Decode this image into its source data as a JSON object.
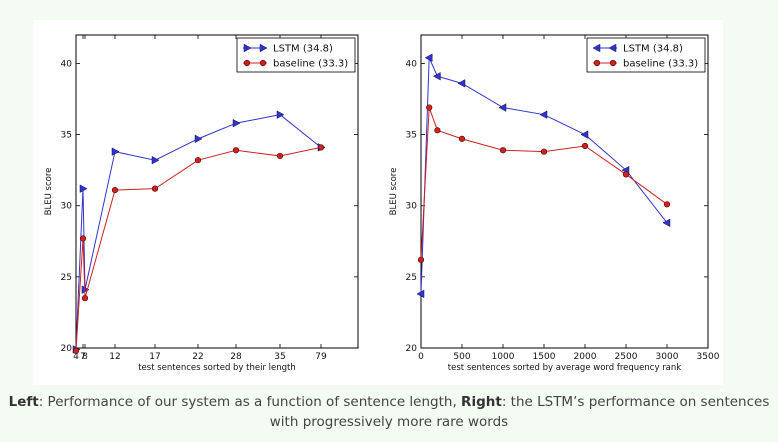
{
  "chart_data": [
    {
      "type": "line",
      "xlabel": "test sentences sorted by their length",
      "ylabel": "BLEU score",
      "ylim": [
        20,
        42
      ],
      "categories": [
        "4",
        "7",
        "8",
        "12",
        "17",
        "22",
        "28",
        "35",
        "79"
      ],
      "xticks": [
        "4",
        "7",
        "8",
        "12",
        "17",
        "22",
        "28",
        "35",
        "79"
      ],
      "yticks": [
        "20",
        "25",
        "30",
        "35",
        "40"
      ],
      "grid": false,
      "legend_position": "top-right",
      "series": [
        {
          "name": "LSTM  (34.8)",
          "color": "#3333cc",
          "marker": "triangle-right",
          "values": [
            19.9,
            31.2,
            24.1,
            33.8,
            33.2,
            34.7,
            35.8,
            36.4,
            34.1
          ]
        },
        {
          "name": "baseline (33.3)",
          "color": "#cc2222",
          "marker": "circle",
          "values": [
            19.8,
            27.7,
            23.5,
            31.1,
            31.2,
            33.2,
            33.9,
            33.5,
            34.1
          ]
        }
      ]
    },
    {
      "type": "line",
      "xlabel": "test sentences sorted by average word frequency rank",
      "ylabel": "BLEU score",
      "ylim": [
        20,
        42
      ],
      "xlim": [
        0,
        3500
      ],
      "xticks": [
        "0",
        "500",
        "1000",
        "1500",
        "2000",
        "2500",
        "3000",
        "3500"
      ],
      "yticks": [
        "20",
        "25",
        "30",
        "35",
        "40"
      ],
      "grid": false,
      "legend_position": "top-right",
      "series": [
        {
          "name": "LSTM  (34.8)",
          "color": "#3333cc",
          "marker": "triangle-left",
          "x": [
            0,
            100,
            200,
            500,
            1000,
            1500,
            2000,
            2500,
            3000
          ],
          "values": [
            23.8,
            40.4,
            39.1,
            38.6,
            36.9,
            36.4,
            35.0,
            32.5,
            28.8
          ]
        },
        {
          "name": "baseline (33.3)",
          "color": "#cc2222",
          "marker": "circle",
          "x": [
            0,
            100,
            200,
            500,
            1000,
            1500,
            2000,
            2500,
            3000
          ],
          "values": [
            26.2,
            36.9,
            35.3,
            34.7,
            33.9,
            33.8,
            34.2,
            32.2,
            30.1
          ]
        }
      ]
    }
  ],
  "caption": {
    "left_label": "Left",
    "left_text": ": Performance of our system as a function of sentence length, ",
    "right_label": "Right",
    "right_text": ": the LSTM’s performance on sentences",
    "line2": "with progressively more rare words"
  }
}
